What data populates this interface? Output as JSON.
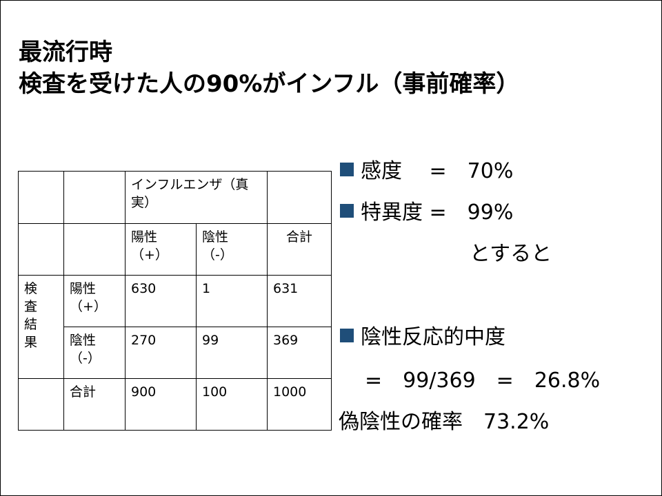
{
  "title": {
    "line1": "最流行時",
    "line2": "検査を受けた人の90%がインフル（事前確率）"
  },
  "table": {
    "header_truth": "インフルエンザ（真実）",
    "header_pos": [
      "陽性",
      "（+）"
    ],
    "header_neg": [
      "陰性",
      "（-）"
    ],
    "header_total": "合計",
    "row_group": [
      "検",
      "査",
      "結",
      "果"
    ],
    "rows": [
      {
        "label": [
          "陽性",
          "（+）"
        ],
        "pos": "630",
        "neg": "1",
        "total": "631"
      },
      {
        "label": [
          "陰性",
          "（-）"
        ],
        "pos": "270",
        "neg": "99",
        "total": "369"
      }
    ],
    "total_row": {
      "label": "合計",
      "pos": "900",
      "neg": "100",
      "total": "1000"
    }
  },
  "right": {
    "sensitivity": "感度　 =　70%",
    "specificity": "特異度 =　99%",
    "then": "とすると",
    "npv_label": "陰性反応的中度",
    "npv_value": "=　99/369　=　26.8%",
    "false_neg": "偽陰性の確率　73.2%"
  },
  "colors": {
    "bullet": "#1f4e79"
  }
}
